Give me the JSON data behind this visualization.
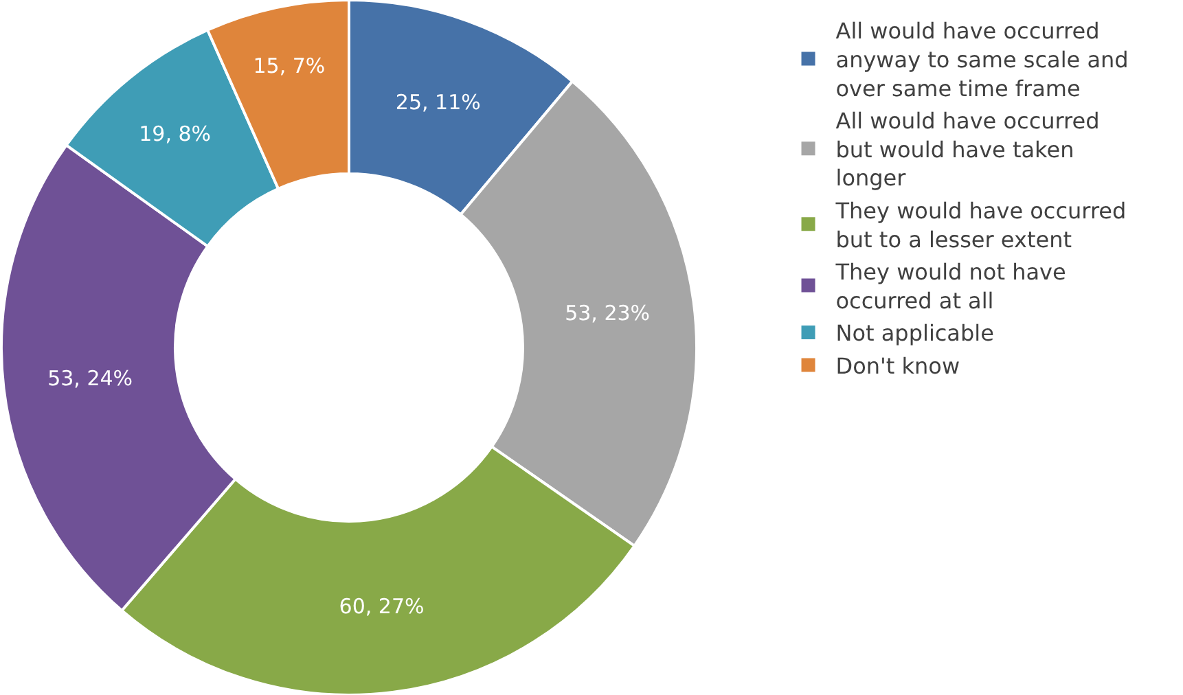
{
  "chart_data": {
    "type": "donut",
    "categories": [
      "All would have occurred anyway to same scale and over same time frame",
      "All would have occurred but would have taken longer",
      "They would have occurred but to a lesser extent",
      "They would not have occurred at all",
      "Not applicable",
      "Don't know"
    ],
    "values": [
      25,
      53,
      60,
      53,
      19,
      15
    ],
    "colors": [
      "#4672a8",
      "#a6a6a6",
      "#88a948",
      "#6f5196",
      "#3f9db6",
      "#df853b"
    ],
    "value_labels": [
      "25, 11%",
      "53, 23%",
      "60, 27%",
      "53, 24%",
      "19, 8%",
      "15, 7%"
    ],
    "legend": "right"
  }
}
